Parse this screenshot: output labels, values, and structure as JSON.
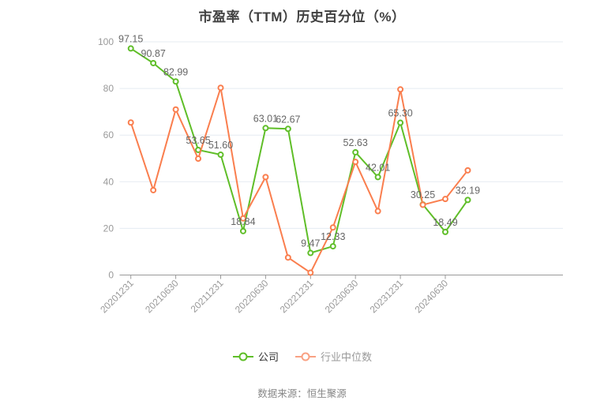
{
  "title": "市盈率（TTM）历史百分位（%）",
  "source_note": "数据来源：恒生聚源",
  "colors": {
    "company_series": "#5fbe28",
    "industry_series": "#fa7e4e",
    "industry_legend": "#f9a183",
    "grid_line": "#e5ebf2",
    "axis_line": "#999999",
    "tick_label": "#999999",
    "data_label": "#666666"
  },
  "legend": {
    "items": [
      {
        "label": "公司",
        "color": "#5fbe28",
        "text_color": "#333333"
      },
      {
        "label": "行业中位数",
        "color": "#f9a183",
        "text_color": "#999999"
      }
    ]
  },
  "chart_data": {
    "type": "line",
    "title": "市盈率（TTM）历史百分位（%）",
    "n_points": 16,
    "x_tick_labels": [
      "20201231",
      "20210630",
      "20211231",
      "20220630",
      "20221231",
      "20230630",
      "20231231",
      "20240630"
    ],
    "x_tick_indices": [
      0,
      2,
      4,
      6,
      8,
      10,
      12,
      14
    ],
    "x_label_rotate": 45,
    "ylim": [
      0,
      100
    ],
    "yticks": [
      0,
      20,
      40,
      60,
      80,
      100
    ],
    "grid": true,
    "legend_position": "bottom",
    "series": [
      {
        "name": "公司",
        "color": "#5fbe28",
        "show_labels": true,
        "point_labels": [
          "97.15",
          "90.87",
          "82.99",
          "53.65",
          "51.60",
          "18.84",
          "63.01",
          "62.67",
          "9.47",
          "12.33",
          "52.63",
          "42.01",
          "65.30",
          "30.25",
          "18.49",
          "32.19"
        ],
        "values": [
          97.15,
          90.87,
          82.99,
          53.65,
          51.6,
          18.84,
          63.01,
          62.67,
          9.47,
          12.33,
          52.63,
          42.01,
          65.3,
          30.25,
          18.49,
          32.19
        ]
      },
      {
        "name": "行业中位数",
        "color": "#fa7e4e",
        "show_labels": false,
        "values": [
          65.4,
          36.4,
          71.0,
          49.9,
          80.3,
          24.3,
          42.0,
          7.5,
          1.0,
          20.4,
          48.5,
          27.4,
          79.6,
          30.1,
          32.6,
          44.9
        ]
      }
    ]
  }
}
